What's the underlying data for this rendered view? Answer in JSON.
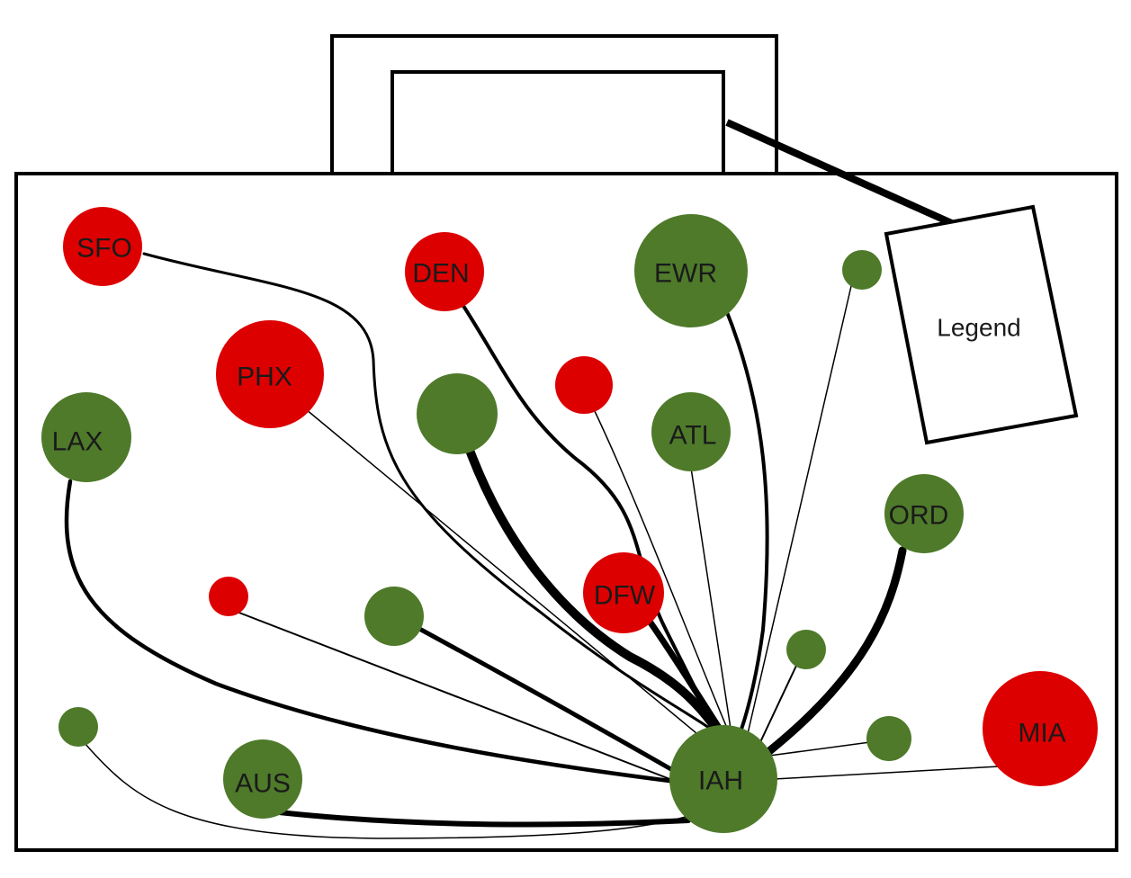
{
  "diagram": {
    "legend_label": "Legend",
    "colors": {
      "red": "#dd0000",
      "green": "#4e7a2a",
      "stroke": "#000000"
    },
    "hub": "IAH",
    "airports": [
      {
        "id": "SFO",
        "label": "SFO",
        "color": "red"
      },
      {
        "id": "DEN",
        "label": "DEN",
        "color": "red"
      },
      {
        "id": "EWR",
        "label": "EWR",
        "color": "green"
      },
      {
        "id": "PHX",
        "label": "PHX",
        "color": "red"
      },
      {
        "id": "LAX",
        "label": "LAX",
        "color": "green"
      },
      {
        "id": "ATL",
        "label": "ATL",
        "color": "green"
      },
      {
        "id": "ORD",
        "label": "ORD",
        "color": "green"
      },
      {
        "id": "DFW",
        "label": "DFW",
        "color": "red"
      },
      {
        "id": "AUS",
        "label": "AUS",
        "color": "green"
      },
      {
        "id": "MIA",
        "label": "MIA",
        "color": "red"
      },
      {
        "id": "IAH",
        "label": "IAH",
        "color": "green"
      },
      {
        "id": "unlabeled-green-1",
        "label": "",
        "color": "green"
      },
      {
        "id": "unlabeled-green-2",
        "label": "",
        "color": "green"
      },
      {
        "id": "unlabeled-red-1",
        "label": "",
        "color": "red"
      },
      {
        "id": "unlabeled-red-2",
        "label": "",
        "color": "red"
      },
      {
        "id": "unlabeled-green-3",
        "label": "",
        "color": "green"
      },
      {
        "id": "unlabeled-green-4",
        "label": "",
        "color": "green"
      },
      {
        "id": "unlabeled-green-5",
        "label": "",
        "color": "green"
      },
      {
        "id": "unlabeled-green-6",
        "label": "",
        "color": "green"
      }
    ]
  }
}
